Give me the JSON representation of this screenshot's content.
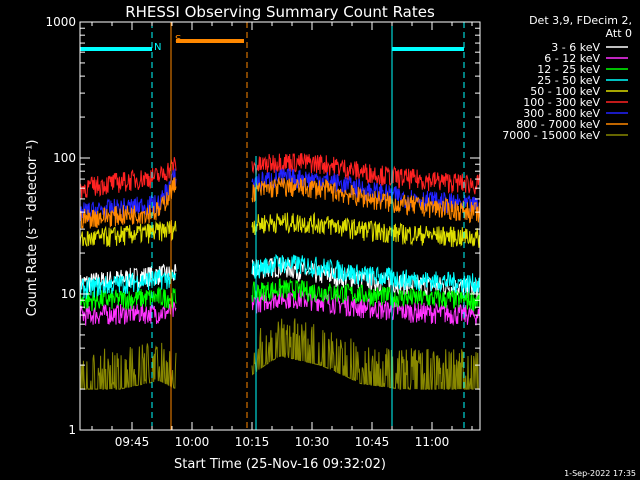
{
  "chart_data": {
    "type": "line",
    "title": "RHESSI Observing Summary Count Rates",
    "xlabel": "Start Time (25-Nov-16 09:32:02)",
    "ylabel": "Count Rate (s⁻¹ detector⁻¹)",
    "y_scale": "log",
    "ylim": [
      1,
      1000
    ],
    "xlim": [
      "09:32",
      "11:12"
    ],
    "x_ticks": [
      "09:45",
      "10:00",
      "10:15",
      "10:30",
      "10:45",
      "11:00"
    ],
    "y_ticks": [
      "1",
      "10",
      "100",
      "1000"
    ],
    "legend_header": [
      "Det 3,9, FDecim 2,",
      "Att 0"
    ],
    "legend_position": "right",
    "footer_date": "1-Sep-2022 17:35",
    "flag_labels": {
      "saa": "S",
      "night": "N"
    },
    "data_gaps": [
      [
        "09:56",
        "10:15"
      ]
    ],
    "flags": {
      "saa": [
        [
          "09:56",
          "10:13"
        ]
      ],
      "night": [
        [
          "09:32",
          "09:50"
        ],
        [
          "10:50",
          "11:08"
        ]
      ]
    },
    "series": [
      {
        "name": "3 - 6 keV",
        "color": "#ffffff",
        "values": [
          [
            0,
            12
          ],
          [
            10,
            13
          ],
          [
            20,
            14
          ],
          [
            24,
            14
          ],
          [
            39,
            15
          ],
          [
            50,
            16
          ],
          [
            60,
            14
          ],
          [
            70,
            13
          ],
          [
            80,
            12
          ],
          [
            100,
            11
          ]
        ]
      },
      {
        "name": "6 - 12 keV",
        "color": "#ff33ff",
        "values": [
          [
            0,
            7
          ],
          [
            10,
            7.2
          ],
          [
            20,
            7.3
          ],
          [
            24,
            7.5
          ],
          [
            39,
            8
          ],
          [
            50,
            9.5
          ],
          [
            60,
            9
          ],
          [
            70,
            8
          ],
          [
            80,
            7.5
          ],
          [
            100,
            7
          ]
        ]
      },
      {
        "name": "12 - 25 keV",
        "color": "#00ff00",
        "values": [
          [
            0,
            9
          ],
          [
            10,
            9.2
          ],
          [
            20,
            9.5
          ],
          [
            24,
            9.5
          ],
          [
            39,
            10
          ],
          [
            50,
            11
          ],
          [
            60,
            10.5
          ],
          [
            70,
            10
          ],
          [
            80,
            9.5
          ],
          [
            100,
            9
          ]
        ]
      },
      {
        "name": "25 - 50 keV",
        "color": "#00ffff",
        "values": [
          [
            0,
            11
          ],
          [
            10,
            12
          ],
          [
            20,
            13
          ],
          [
            24,
            13
          ],
          [
            39,
            14
          ],
          [
            50,
            17
          ],
          [
            60,
            16
          ],
          [
            70,
            14
          ],
          [
            80,
            13
          ],
          [
            100,
            12
          ]
        ]
      },
      {
        "name": "50 - 100 keV",
        "color": "#dddd00",
        "values": [
          [
            0,
            25
          ],
          [
            10,
            27
          ],
          [
            20,
            29
          ],
          [
            24,
            31
          ],
          [
            39,
            32
          ],
          [
            50,
            34
          ],
          [
            60,
            33
          ],
          [
            70,
            30
          ],
          [
            80,
            28
          ],
          [
            100,
            26
          ]
        ]
      },
      {
        "name": "100 - 300 keV",
        "color": "#ff2222",
        "values": [
          [
            0,
            60
          ],
          [
            10,
            67
          ],
          [
            20,
            74
          ],
          [
            24,
            90
          ],
          [
            39,
            80
          ],
          [
            50,
            95
          ],
          [
            60,
            92
          ],
          [
            70,
            80
          ],
          [
            80,
            72
          ],
          [
            100,
            64
          ]
        ]
      },
      {
        "name": "300 - 800 keV",
        "color": "#2222ff",
        "values": [
          [
            0,
            40
          ],
          [
            10,
            43
          ],
          [
            20,
            46
          ],
          [
            24,
            75
          ],
          [
            39,
            62
          ],
          [
            50,
            72
          ],
          [
            60,
            70
          ],
          [
            70,
            60
          ],
          [
            80,
            52
          ],
          [
            100,
            44
          ]
        ]
      },
      {
        "name": "800 - 7000 keV",
        "color": "#ff8800",
        "values": [
          [
            0,
            36
          ],
          [
            10,
            38
          ],
          [
            20,
            41
          ],
          [
            24,
            65
          ],
          [
            39,
            54
          ],
          [
            50,
            62
          ],
          [
            60,
            60
          ],
          [
            70,
            52
          ],
          [
            80,
            46
          ],
          [
            100,
            40
          ]
        ]
      },
      {
        "name": "7000 - 15000 keV",
        "color": "#888800",
        "values": [
          [
            0,
            2
          ],
          [
            10,
            2
          ],
          [
            20,
            2.3
          ],
          [
            24,
            2
          ],
          [
            39,
            2
          ],
          [
            50,
            3.5
          ],
          [
            60,
            3
          ],
          [
            70,
            2.2
          ],
          [
            80,
            2
          ],
          [
            100,
            2
          ]
        ]
      }
    ]
  }
}
